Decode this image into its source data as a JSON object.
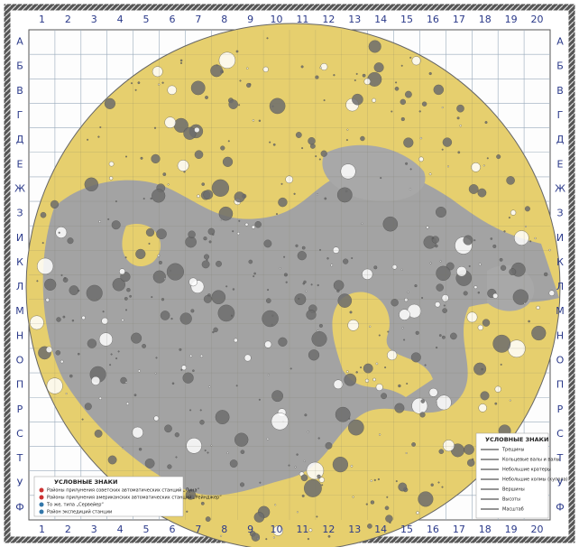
{
  "grid": {
    "columns": [
      1,
      2,
      3,
      4,
      5,
      6,
      7,
      8,
      9,
      10,
      11,
      12,
      13,
      14,
      15,
      16,
      17,
      18,
      19,
      20
    ],
    "rows": [
      "А",
      "Б",
      "В",
      "Г",
      "Д",
      "Е",
      "Ж",
      "З",
      "И",
      "К",
      "Л",
      "М",
      "Н",
      "О",
      "П",
      "Р",
      "С",
      "Т",
      "У",
      "Ф"
    ]
  },
  "legend_left": {
    "title": "УСЛОВНЫЕ ЗНАКИ",
    "items": [
      "Районы прилунения советских автоматических станций „Луна“",
      "Районы прилунения американских автоматических станций „Рейнджер“",
      "То же, типа „Сервейер“",
      "Район экспедиций станции"
    ]
  },
  "legend_right": {
    "title": "УСЛОВНЫЕ ЗНАКИ",
    "items": [
      "Трещины",
      "Кольцевые валы и валы",
      "Небольшие кратеры",
      "Небольшие холмы (купола)",
      "Вершины",
      "Высоты",
      "Масштаб"
    ]
  }
}
